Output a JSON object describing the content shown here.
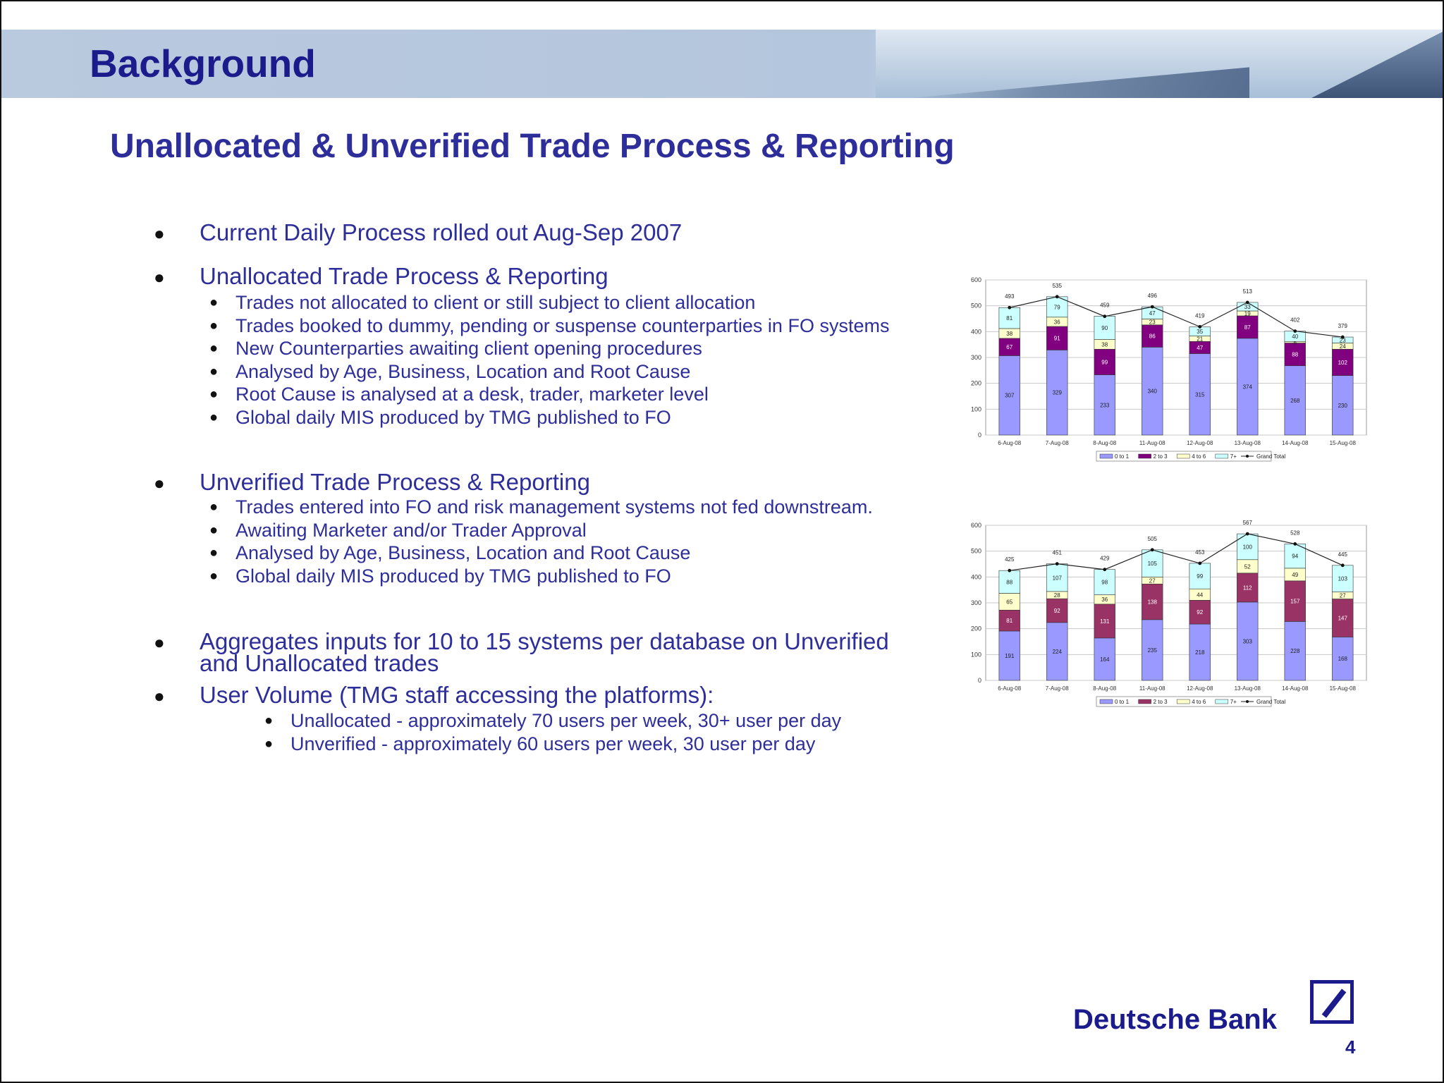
{
  "header": {
    "title": "Background"
  },
  "slide": {
    "subtitle": "Unallocated & Unverified Trade Process & Reporting"
  },
  "bullets": {
    "b1": "Current Daily Process rolled out Aug-Sep 2007",
    "b2": "Unallocated Trade Process & Reporting",
    "b2_items": [
      "Trades not allocated to client or still subject to client allocation",
      "Trades booked to dummy, pending or suspense counterparties in FO systems",
      "New Counterparties awaiting client opening procedures",
      "Analysed by Age, Business, Location and Root Cause",
      "Root Cause is analysed at a desk, trader, marketer level",
      "Global daily MIS produced by TMG published to FO"
    ],
    "b3": "Unverified Trade Process & Reporting",
    "b3_items": [
      "Trades entered into FO and risk management systems not fed downstream.",
      "Awaiting Marketer and/or Trader Approval",
      "Analysed by Age, Business, Location and Root Cause",
      "Global daily MIS produced by TMG published to FO"
    ],
    "b4_line1": "Aggregates inputs for 10 to 15 systems per database on Unverified",
    "b4_line2": "and Unallocated trades",
    "b5": "User Volume (TMG staff accessing the platforms):",
    "b5_items": [
      "Unallocated - approximately 70 users per week, 30+ user per day",
      "Unverified - approximately 60 users per week, 30 user per day"
    ]
  },
  "colors": {
    "c0": "#9999ff",
    "c1_chart1": "#800080",
    "c1_chart2": "#993366",
    "c2": "#ffffcc",
    "c3": "#ccffff",
    "text": "#2e2e9a"
  },
  "chart_data": [
    {
      "type": "bar",
      "stacked": true,
      "categories": [
        "6-Aug-08",
        "7-Aug-08",
        "8-Aug-08",
        "11-Aug-08",
        "12-Aug-08",
        "13-Aug-08",
        "14-Aug-08",
        "15-Aug-08"
      ],
      "series": [
        {
          "name": "0 to 1",
          "values": [
            307,
            329,
            233,
            340,
            315,
            374,
            268,
            230
          ]
        },
        {
          "name": "2 to 3",
          "values": [
            67,
            91,
            99,
            86,
            47,
            87,
            88,
            102
          ]
        },
        {
          "name": "4 to 6",
          "values": [
            38,
            36,
            38,
            23,
            21,
            19,
            6,
            24
          ]
        },
        {
          "name": "7+",
          "values": [
            81,
            79,
            90,
            47,
            35,
            33,
            40,
            23
          ]
        }
      ],
      "line": {
        "name": "Grand Total",
        "values": [
          493,
          535,
          459,
          496,
          419,
          513,
          402,
          379
        ]
      },
      "ylim": [
        0,
        600
      ],
      "yticks": [
        0,
        100,
        200,
        300,
        400,
        500,
        600
      ],
      "legend": "bottom"
    },
    {
      "type": "bar",
      "stacked": true,
      "categories": [
        "6-Aug-08",
        "7-Aug-08",
        "8-Aug-08",
        "11-Aug-08",
        "12-Aug-08",
        "13-Aug-08",
        "14-Aug-08",
        "15-Aug-08"
      ],
      "series": [
        {
          "name": "0 to 1",
          "values": [
            191,
            224,
            164,
            235,
            218,
            303,
            228,
            168
          ]
        },
        {
          "name": "2 to 3",
          "values": [
            81,
            92,
            131,
            138,
            92,
            112,
            157,
            147
          ]
        },
        {
          "name": "4 to 6",
          "values": [
            65,
            28,
            36,
            27,
            44,
            52,
            49,
            27
          ]
        },
        {
          "name": "7+",
          "values": [
            88,
            107,
            98,
            105,
            99,
            100,
            94,
            103
          ]
        }
      ],
      "line": {
        "name": "Grand Total",
        "values": [
          425,
          451,
          429,
          505,
          453,
          567,
          528,
          445
        ]
      },
      "ylim": [
        0,
        600
      ],
      "yticks": [
        0,
        100,
        200,
        300,
        400,
        500,
        600
      ],
      "legend": "bottom"
    }
  ],
  "footer": {
    "logo": "Deutsche Bank",
    "page": "4"
  }
}
